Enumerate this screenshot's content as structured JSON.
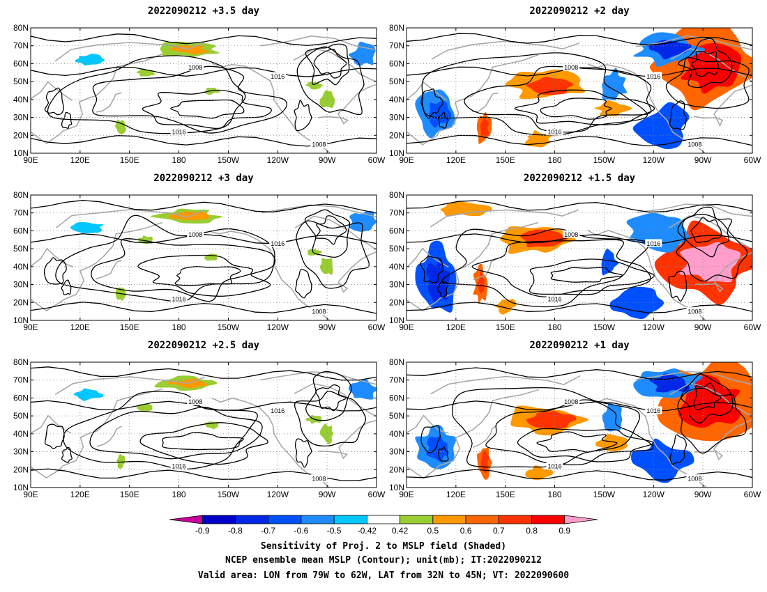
{
  "panels": [
    {
      "title": "2022090212 +3.5 day",
      "mode": "weak",
      "seed": 3
    },
    {
      "title": "2022090212 +2 day",
      "mode": "strong",
      "seed": 11
    },
    {
      "title": "2022090212 +3 day",
      "mode": "weak",
      "seed": 5
    },
    {
      "title": "2022090212 +1.5 day",
      "mode": "strongest",
      "seed": 17
    },
    {
      "title": "2022090212 +2.5 day",
      "mode": "weak",
      "seed": 7
    },
    {
      "title": "2022090212 +1 day",
      "mode": "strong",
      "seed": 23
    }
  ],
  "axes": {
    "lat_labels": [
      "10N",
      "20N",
      "30N",
      "40N",
      "50N",
      "60N",
      "70N",
      "80N"
    ],
    "lon_labels": [
      "90E",
      "120E",
      "150E",
      "180",
      "150W",
      "120W",
      "90W",
      "60W"
    ],
    "lon_range": [
      90,
      300
    ],
    "lon_ticks": [
      90,
      120,
      150,
      180,
      210,
      240,
      270,
      300
    ],
    "lat_range": [
      10,
      80
    ]
  },
  "contour_labels": [
    "1008",
    "1016"
  ],
  "colorbar": {
    "labels": [
      "-0.9",
      "-0.8",
      "-0.7",
      "-0.6",
      "-0.5",
      "-0.42",
      "0.42",
      "0.5",
      "0.6",
      "0.7",
      "0.8",
      "0.9"
    ],
    "colors": [
      "#c8009c",
      "#0000c8",
      "#0028e6",
      "#0050ff",
      "#1e8cff",
      "#00c8ff",
      "#ffffff",
      "#9acd32",
      "#ff9900",
      "#ff6600",
      "#ff3300",
      "#ff0000",
      "#ff9ecb"
    ]
  },
  "caption": {
    "line1": "Sensitivity of Proj. 2 to MSLP field (Shaded)",
    "line2": "NCEP ensemble mean MSLP (Contour); unit(mb); IT:2022090212",
    "line3": "Valid area: LON from 79W to 62W, LAT from 32N to 45N; VT: 2022090600"
  }
}
